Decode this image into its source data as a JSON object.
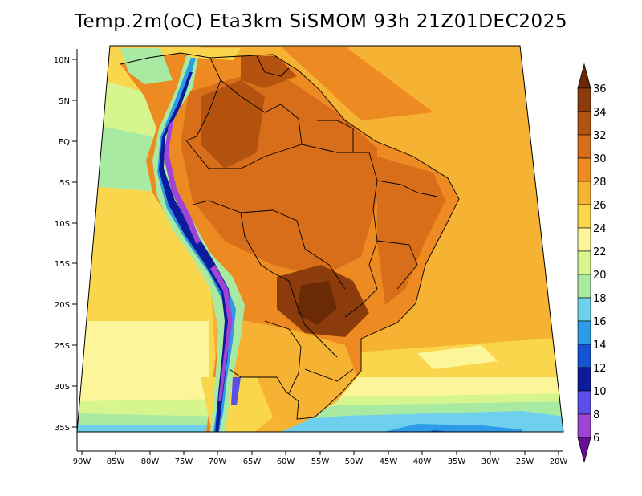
{
  "title": "Temp.2m(oC) Eta3km SiSMOM 93h 21Z01DEC2025",
  "map": {
    "lat_labels": [
      "10N",
      "5N",
      "EQ",
      "5S",
      "10S",
      "15S",
      "20S",
      "25S",
      "30S",
      "35S"
    ],
    "lon_labels": [
      "90W",
      "85W",
      "80W",
      "75W",
      "70W",
      "65W",
      "60W",
      "55W",
      "50W",
      "45W",
      "40W",
      "35W",
      "30W",
      "25W",
      "20W"
    ]
  },
  "colorbar": {
    "labels": [
      "36",
      "34",
      "32",
      "30",
      "28",
      "26",
      "24",
      "22",
      "20",
      "18",
      "16",
      "14",
      "12",
      "10",
      "8",
      "6"
    ],
    "colors": [
      "#6b2a06",
      "#8c3c0c",
      "#b4520f",
      "#d86e19",
      "#ee8a22",
      "#f6b233",
      "#fad64c",
      "#fdf59a",
      "#d6f58e",
      "#a9eaa2",
      "#6fd0ee",
      "#2e9be8",
      "#1553d2",
      "#0c1b9a",
      "#5a4fe6",
      "#9f45d6",
      "#6a0d99"
    ]
  }
}
